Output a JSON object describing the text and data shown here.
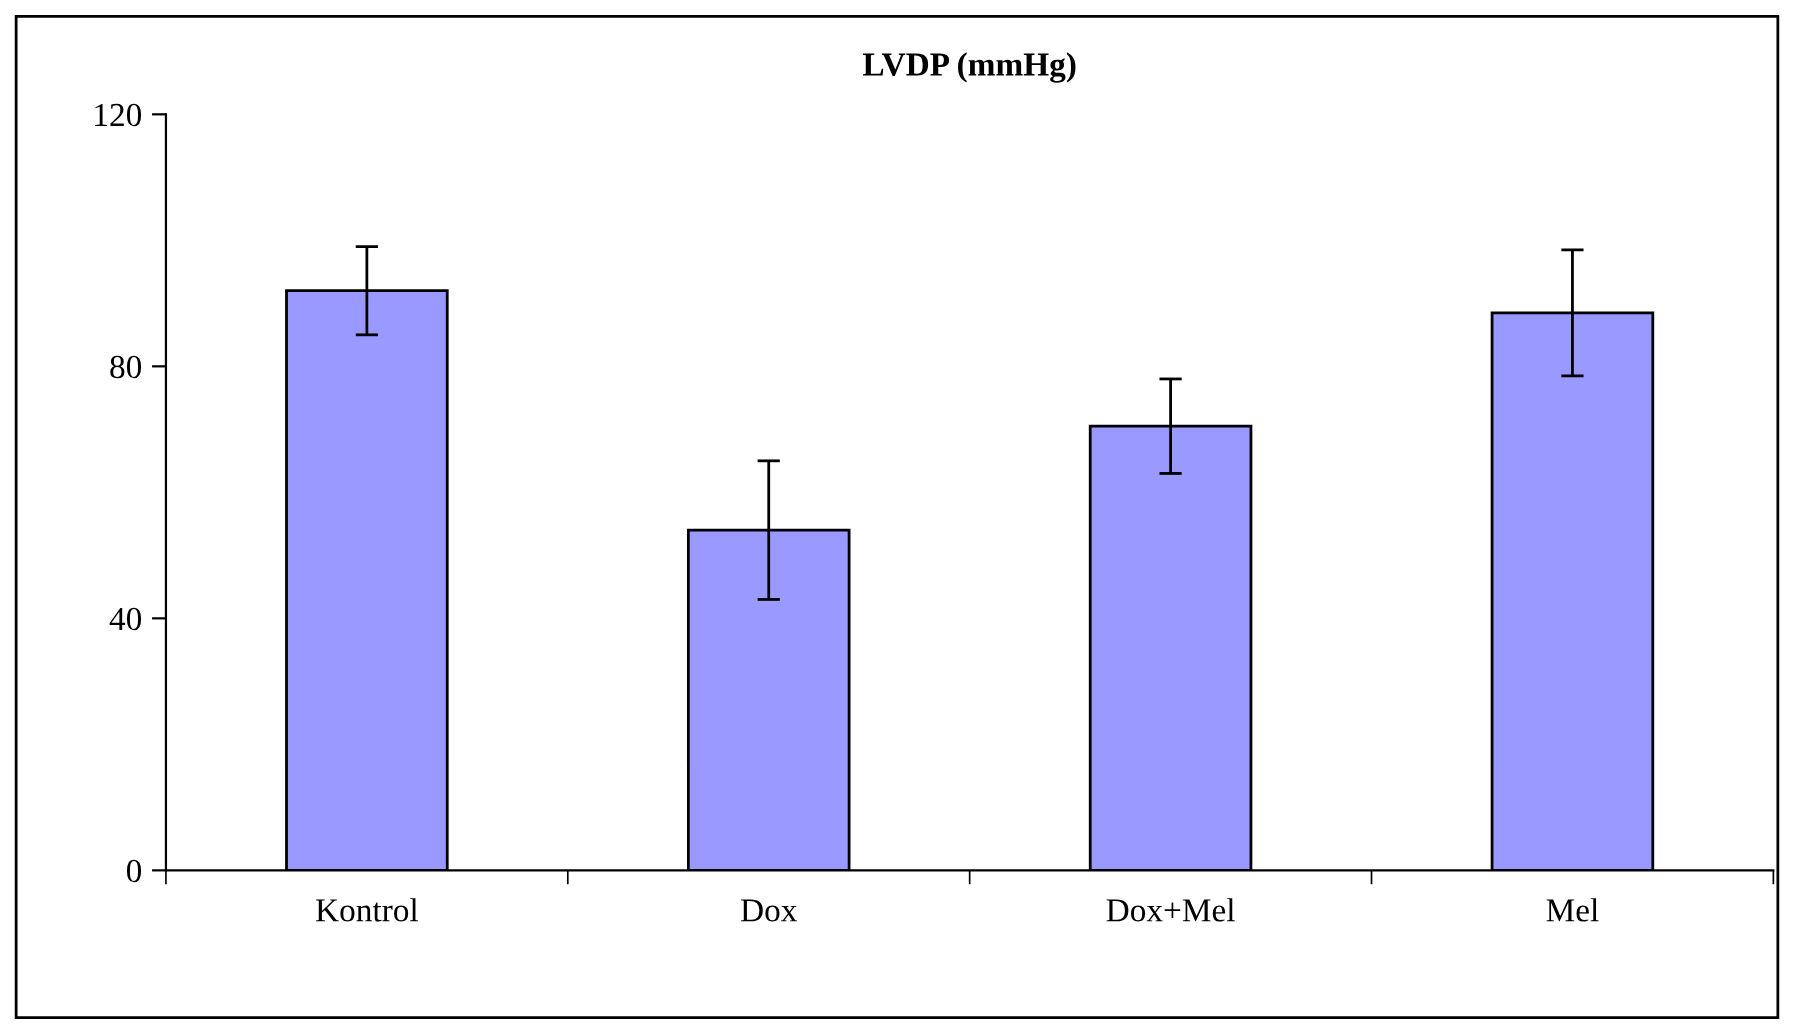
{
  "chart_data": {
    "type": "bar",
    "title": "LVDP (mmHg)",
    "categories": [
      "Kontrol",
      "Dox",
      "Dox+Mel",
      "Mel"
    ],
    "series": [
      {
        "color": "#9999ff",
        "values": [
          92,
          54,
          70.5,
          88.5
        ],
        "errors": [
          7,
          11,
          7.5,
          10
        ]
      }
    ],
    "ylim": [
      0,
      120
    ],
    "yticks": [
      0,
      40,
      80,
      120
    ],
    "grid": false,
    "legend": false
  }
}
